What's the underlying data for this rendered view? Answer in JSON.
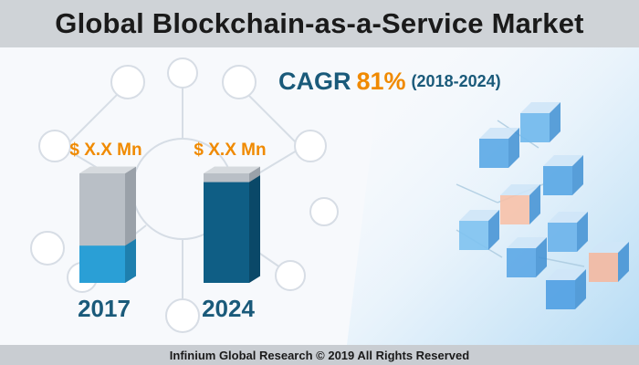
{
  "title": "Global Blockchain-as-a-Service Market",
  "cagr": {
    "label": "CAGR",
    "value": "81%",
    "period": "(2018-2024)"
  },
  "footer": "Infinium Global Research © 2019 All Rights Reserved",
  "colors": {
    "accent_orange": "#f08a00",
    "dark_blue": "#1a5a7a",
    "bar_2017_fill": "#2a9fd6",
    "bar_2024_fill": "#0f5e85",
    "bar_empty": "#b9bfc6"
  },
  "chart_data": {
    "type": "bar",
    "categories": [
      "2017",
      "2024"
    ],
    "value_labels": [
      "$ X.X Mn",
      "$ X.X Mn"
    ],
    "filled_fraction": [
      0.34,
      0.92
    ],
    "grid": false
  }
}
